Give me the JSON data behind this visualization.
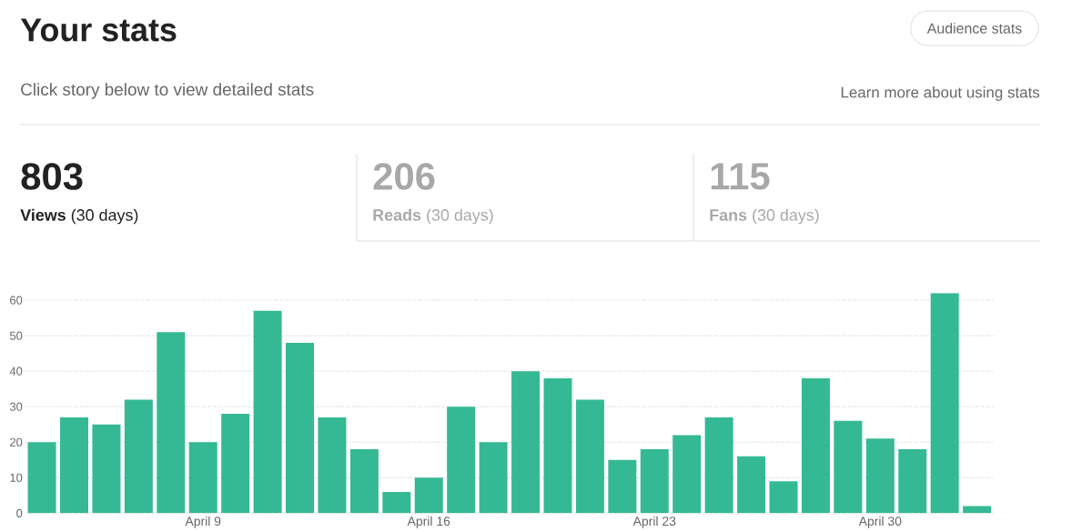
{
  "chart_data": {
    "type": "bar",
    "title": "Your stats",
    "subtitle": "Click story below to view detailed stats",
    "annotations": [
      "Audience stats",
      "Learn more about using stats",
      "803",
      "**Views** (30 days)",
      "206",
      "**Reads** (30 days)",
      "115",
      "**Fans** (30 days)"
    ],
    "categories": [
      null,
      null,
      null,
      null,
      null,
      "April 9",
      null,
      null,
      null,
      null,
      null,
      null,
      "April 16",
      null,
      null,
      null,
      null,
      null,
      null,
      "April 23",
      null,
      null,
      null,
      null,
      null,
      null,
      "April 30",
      null,
      null,
      null
    ],
    "values": [
      20,
      27,
      25,
      32,
      51,
      20,
      28,
      57,
      48,
      27,
      18,
      6,
      10,
      30,
      20,
      40,
      38,
      32,
      15,
      18,
      22,
      27,
      16,
      9,
      38,
      26,
      21,
      18,
      62,
      2
    ],
    "color": "#35b994",
    "ylim": [
      0,
      62
    ],
    "yticks": [
      0,
      10,
      20,
      30,
      40,
      50,
      60
    ],
    "grid": "y"
  }
}
